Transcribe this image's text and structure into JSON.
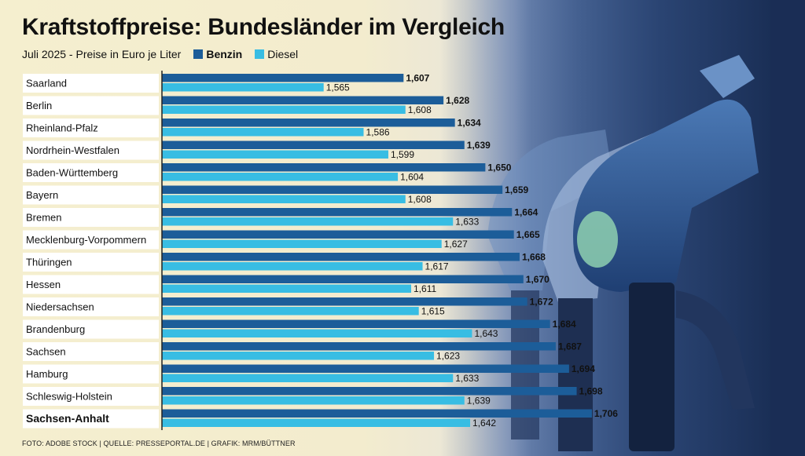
{
  "title": "Kraftstoffpreise: Bundesländer im Vergleich",
  "subtitle": "Juli 2025 - Preise in Euro je Liter",
  "footer": "FOTO: ADOBE STOCK | QUELLE: PRESSEPORTAL.DE | GRAFIK: MRM/BÜTTNER",
  "colors": {
    "benzin": "#1c5d99",
    "diesel": "#38bde3",
    "label_bg": "#ffffff",
    "text": "#111111"
  },
  "chart_data": {
    "type": "bar",
    "orientation": "horizontal",
    "title": "Kraftstoffpreise: Bundesländer im Vergleich",
    "subtitle": "Juli 2025 - Preise in Euro je Liter",
    "categories": [
      "Saarland",
      "Berlin",
      "Rheinland-Pfalz",
      "Nordrhein-Westfalen",
      "Baden-Württemberg",
      "Bayern",
      "Bremen",
      "Mecklenburg-Vorpommern",
      "Thüringen",
      "Hessen",
      "Niedersachsen",
      "Brandenburg",
      "Sachsen",
      "Hamburg",
      "Schleswig-Holstein",
      "Sachsen-Anhalt"
    ],
    "highlight_category": "Sachsen-Anhalt",
    "series": [
      {
        "name": "Benzin",
        "values": [
          1.607,
          1.628,
          1.634,
          1.639,
          1.65,
          1.659,
          1.664,
          1.665,
          1.668,
          1.67,
          1.672,
          1.684,
          1.687,
          1.694,
          1.698,
          1.706
        ],
        "labels": [
          "1,607",
          "1,628",
          "1,634",
          "1,639",
          "1,650",
          "1,659",
          "1,664",
          "1,665",
          "1,668",
          "1,670",
          "1,672",
          "1,684",
          "1,687",
          "1,694",
          "1,698",
          "1,706"
        ]
      },
      {
        "name": "Diesel",
        "values": [
          1.565,
          1.608,
          1.586,
          1.599,
          1.604,
          1.608,
          1.633,
          1.627,
          1.617,
          1.611,
          1.615,
          1.643,
          1.623,
          1.633,
          1.639,
          1.642
        ],
        "labels": [
          "1,565",
          "1,608",
          "1,586",
          "1,599",
          "1,604",
          "1,608",
          "1,633",
          "1,627",
          "1,617",
          "1,611",
          "1,615",
          "1,643",
          "1,623",
          "1,633",
          "1,639",
          "1,642"
        ]
      }
    ],
    "xlim": [
      1.48,
      1.75
    ],
    "grid": false,
    "legend": "top-left"
  }
}
